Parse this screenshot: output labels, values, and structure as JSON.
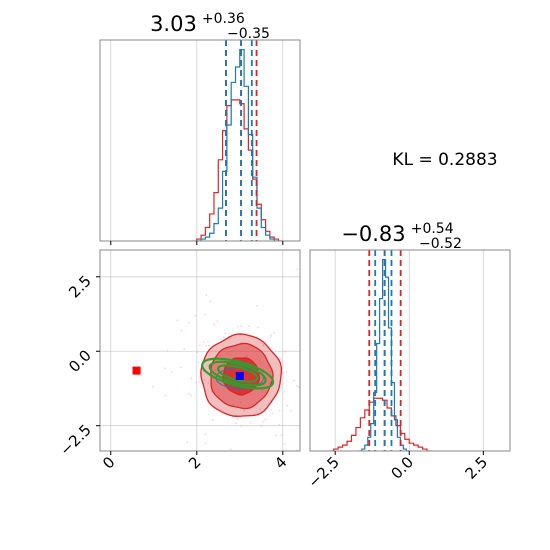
{
  "chart_data": {
    "type": "corner",
    "kl_annotation": "KL = 0.2883",
    "colors": {
      "series_a": "#1f77b4",
      "series_b": "#d62728",
      "ellipse": "#2ca02c",
      "marker_true": "#0000ff",
      "marker_other": "#ff0000",
      "grid": "#b0b0b0"
    },
    "params": [
      {
        "title": {
          "value": "3.03",
          "upper": "+0.36",
          "lower": "−0.35"
        },
        "range": [
          -0.25,
          4.4
        ],
        "ticks": [
          0,
          2,
          4
        ],
        "tick_labels": [
          "0",
          "2",
          "4"
        ],
        "hist_blue": {
          "bin_start": 2.0,
          "bin_width": 0.1,
          "counts": [
            0,
            1,
            2,
            4,
            9,
            17,
            36,
            60,
            82,
            90,
            99,
            80,
            55,
            33,
            17,
            7,
            3,
            1,
            0
          ]
        },
        "hist_red": {
          "bin_start": 1.9,
          "bin_width": 0.1,
          "counts": [
            0,
            1,
            3,
            7,
            14,
            25,
            42,
            57,
            70,
            73,
            73,
            71,
            58,
            47,
            32,
            19,
            11,
            5,
            2,
            1,
            0
          ]
        },
        "quantiles_blue": [
          2.68,
          3.03,
          3.28
        ],
        "quantiles_red": [
          2.68,
          3.03,
          3.39
        ]
      },
      {
        "title": {
          "value": "−0.83",
          "upper": "+0.54",
          "lower": "−0.52"
        },
        "range": [
          -3.35,
          3.4
        ],
        "ticks": [
          -2.5,
          0.0,
          2.5
        ],
        "tick_labels": [
          "−2.5",
          "0.0",
          "2.5"
        ],
        "hist_blue": {
          "bin_start": -1.7,
          "bin_width": 0.1,
          "counts": [
            0,
            1,
            3,
            7,
            14,
            30,
            55,
            78,
            98,
            89,
            63,
            35,
            16,
            7,
            3,
            1,
            0
          ]
        },
        "hist_red": {
          "bin_start": -2.7,
          "bin_width": 0.15,
          "counts": [
            0,
            1,
            2,
            3,
            5,
            8,
            12,
            17,
            21,
            25,
            27,
            27,
            26,
            22,
            18,
            13,
            9,
            6,
            4,
            3,
            2,
            1,
            0
          ]
        },
        "quantiles_blue": [
          -1.15,
          -0.83,
          -0.6
        ],
        "quantiles_red": [
          -1.35,
          -0.83,
          -0.29
        ]
      }
    ],
    "ticks_2d_y": [
      -2.5,
      0.0,
      2.5
    ],
    "tick_labels_2d_y": [
      "−2.5",
      "0.0",
      "2.5"
    ],
    "contour_red": {
      "center": [
        3.03,
        -0.83
      ],
      "levels": [
        {
          "sx": 0.42,
          "sy": 0.62,
          "alpha": 1.0
        },
        {
          "sx": 0.72,
          "sy": 1.08,
          "alpha": 0.55
        },
        {
          "sx": 0.93,
          "sy": 1.38,
          "alpha": 0.3
        }
      ]
    },
    "ellipse_green": {
      "center": [
        2.95,
        -0.75
      ],
      "levels": [
        {
          "sx": 0.47,
          "sy": 0.22
        },
        {
          "sx": 0.67,
          "sy": 0.32
        },
        {
          "sx": 0.85,
          "sy": 0.4
        }
      ],
      "angle_deg": 15
    },
    "blue_2d_cluster": {
      "center": [
        3.0,
        -0.9
      ],
      "sx": 0.55,
      "sy": 0.35
    },
    "markers": [
      {
        "x": 0.6,
        "y": -0.65,
        "color": "#ff0000"
      },
      {
        "x": 3.0,
        "y": -0.83,
        "color": "#0000ff"
      }
    ]
  }
}
